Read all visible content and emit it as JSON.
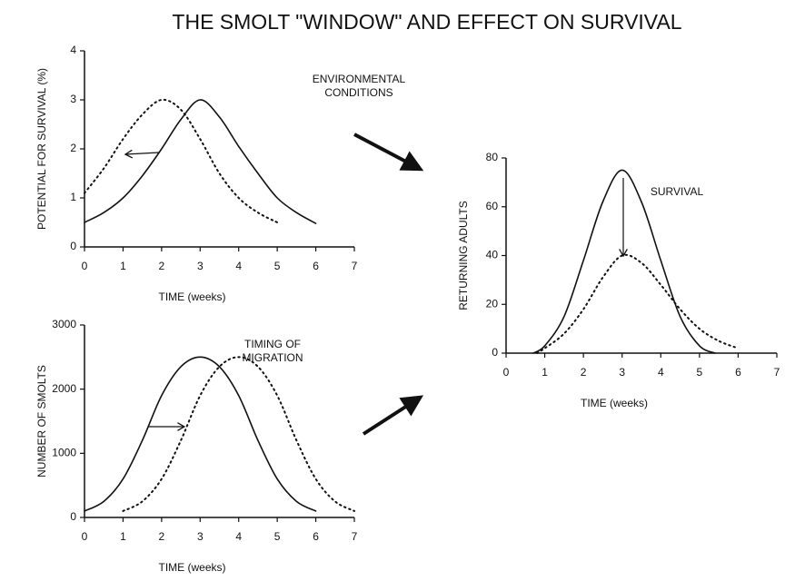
{
  "title": "THE SMOLT \"WINDOW\" AND EFFECT ON SURVIVAL",
  "chart_data": [
    {
      "type": "line",
      "xlabel": "TIME (weeks)",
      "ylabel": "POTENTIAL FOR SURVIVAL (%)",
      "annotation": [
        "ENVIRONMENTAL",
        "CONDITIONS"
      ],
      "xlim": [
        0,
        7
      ],
      "ylim": [
        0,
        4
      ],
      "xticks": [
        0,
        1,
        2,
        3,
        4,
        5,
        6,
        7
      ],
      "yticks": [
        0,
        1,
        2,
        3,
        4
      ],
      "series": [
        {
          "style": "solid",
          "color": "#111111",
          "x": [
            0,
            0.5,
            1,
            1.5,
            2,
            2.5,
            3,
            3.5,
            4,
            4.5,
            5,
            5.5,
            6
          ],
          "values": [
            0.5,
            0.7,
            1.0,
            1.45,
            2.0,
            2.6,
            3.0,
            2.65,
            2.05,
            1.5,
            1.0,
            0.7,
            0.48
          ]
        },
        {
          "style": "dotted",
          "color": "#111111",
          "x": [
            0,
            0.5,
            1,
            1.5,
            2,
            2.5,
            3,
            3.5,
            4,
            4.5,
            5
          ],
          "values": [
            1.1,
            1.6,
            2.2,
            2.7,
            3.0,
            2.8,
            2.2,
            1.5,
            1.0,
            0.7,
            0.5
          ]
        }
      ]
    },
    {
      "type": "line",
      "xlabel": "TIME (weeks)",
      "ylabel": "NUMBER OF SMOLTS",
      "annotation": [
        "TIMING OF",
        "MIGRATION"
      ],
      "xlim": [
        0,
        7
      ],
      "ylim": [
        0,
        3000
      ],
      "xticks": [
        0,
        1,
        2,
        3,
        4,
        5,
        6,
        7
      ],
      "yticks": [
        0,
        1000,
        2000,
        3000
      ],
      "series": [
        {
          "style": "solid",
          "color": "#111111",
          "x": [
            0,
            0.5,
            1,
            1.5,
            2,
            2.5,
            3,
            3.5,
            4,
            4.5,
            5,
            5.5,
            6
          ],
          "values": [
            100,
            250,
            600,
            1200,
            1900,
            2350,
            2500,
            2350,
            1900,
            1200,
            600,
            250,
            100
          ]
        },
        {
          "style": "dotted",
          "color": "#111111",
          "x": [
            1,
            1.5,
            2,
            2.5,
            3,
            3.5,
            4,
            4.5,
            5,
            5.5,
            6,
            6.5,
            7
          ],
          "values": [
            100,
            250,
            600,
            1200,
            1900,
            2350,
            2500,
            2350,
            1900,
            1200,
            600,
            250,
            100
          ]
        }
      ]
    },
    {
      "type": "line",
      "xlabel": "TIME (weeks)",
      "ylabel": "RETURNING ADULTS",
      "annotation": [
        "SURVIVAL"
      ],
      "xlim": [
        0,
        7
      ],
      "ylim": [
        0,
        80
      ],
      "xticks": [
        0,
        1,
        2,
        3,
        4,
        5,
        6,
        7
      ],
      "yticks": [
        0,
        20,
        40,
        60,
        80
      ],
      "series": [
        {
          "style": "solid",
          "color": "#111111",
          "x": [
            0.7,
            1,
            1.5,
            2,
            2.5,
            3,
            3.5,
            4,
            4.5,
            5,
            5.4
          ],
          "values": [
            0,
            3,
            15,
            38,
            62,
            75,
            62,
            38,
            15,
            3,
            0
          ]
        },
        {
          "style": "dotted",
          "color": "#111111",
          "x": [
            0.8,
            1,
            1.5,
            2,
            2.5,
            3,
            3.5,
            4,
            4.5,
            5,
            5.5,
            6
          ],
          "values": [
            0,
            2,
            8,
            18,
            31,
            40,
            37,
            28,
            18,
            10,
            5,
            2
          ]
        }
      ]
    }
  ]
}
